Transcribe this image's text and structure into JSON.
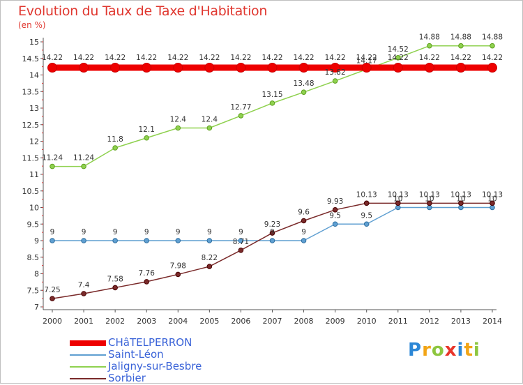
{
  "title": "Evolution du Taux de Taxe d'Habitation",
  "unit_label": "(en %)",
  "brand": "Proxiti",
  "chart_data": {
    "type": "line",
    "title": "Evolution du Taux de Taxe d'Habitation",
    "ylabel": "(en %)",
    "x": [
      "2000",
      "2001",
      "2002",
      "2003",
      "2004",
      "2005",
      "2006",
      "2007",
      "2008",
      "2009",
      "2010",
      "2011",
      "2012",
      "2013",
      "2014"
    ],
    "ylim": [
      7,
      15
    ],
    "yticks": [
      "7",
      "7.5",
      "8",
      "8.5",
      "9",
      "9.5",
      "10",
      "10.5",
      "11",
      "11.5",
      "12",
      "12.5",
      "13",
      "13.5",
      "14",
      "14.5",
      "15"
    ],
    "grid": false,
    "legend_position": "bottom-left",
    "series": [
      {
        "name": "CHâTELPERRON",
        "color": "#ee0000",
        "values": [
          14.22,
          14.22,
          14.22,
          14.22,
          14.22,
          14.22,
          14.22,
          14.22,
          14.22,
          14.22,
          14.22,
          14.22,
          14.22,
          14.22,
          14.22
        ],
        "labels": [
          "14.22",
          "14.22",
          "14.22",
          "14.22",
          "14.22",
          "14.22",
          "14.22",
          "14.22",
          "14.22",
          "14.22",
          "14.22",
          "14.22",
          "14.22",
          "14.22",
          "14.22"
        ]
      },
      {
        "name": "Saint-Léon",
        "color": "#5f9fd1",
        "values": [
          9,
          9,
          9,
          9,
          9,
          9,
          9,
          9,
          9,
          9.5,
          9.5,
          10,
          10,
          10,
          10
        ],
        "labels": [
          "9",
          "9",
          "9",
          "9",
          "9",
          "9",
          "9",
          "9",
          "9",
          "9.5",
          "9.5",
          "10",
          "10",
          "10",
          "10"
        ]
      },
      {
        "name": "Jaligny-sur-Besbre",
        "color": "#8fd14f",
        "values": [
          11.24,
          11.24,
          11.8,
          12.1,
          12.4,
          12.4,
          12.77,
          13.15,
          13.48,
          13.82,
          14.17,
          14.52,
          14.88,
          14.88,
          14.88
        ],
        "labels": [
          "11.24",
          "11.24",
          "11.8",
          "12.1",
          "12.4",
          "12.4",
          "12.77",
          "13.15",
          "13.48",
          "13.82",
          "14.17",
          "14.52",
          "14.88",
          "14.88",
          "14.88"
        ]
      },
      {
        "name": "Sorbier",
        "color": "#7a2a2a",
        "values": [
          7.25,
          7.4,
          7.58,
          7.76,
          7.98,
          8.22,
          8.71,
          9.23,
          9.6,
          9.93,
          10.13,
          10.13,
          10.13,
          10.13,
          10.13
        ],
        "labels": [
          "7.25",
          "7.4",
          "7.58",
          "7.76",
          "7.98",
          "8.22",
          "8.71",
          "9.23",
          "9.6",
          "9.93",
          "10.13",
          "10.13",
          "10.13",
          "10.13",
          "10.13"
        ]
      }
    ]
  }
}
